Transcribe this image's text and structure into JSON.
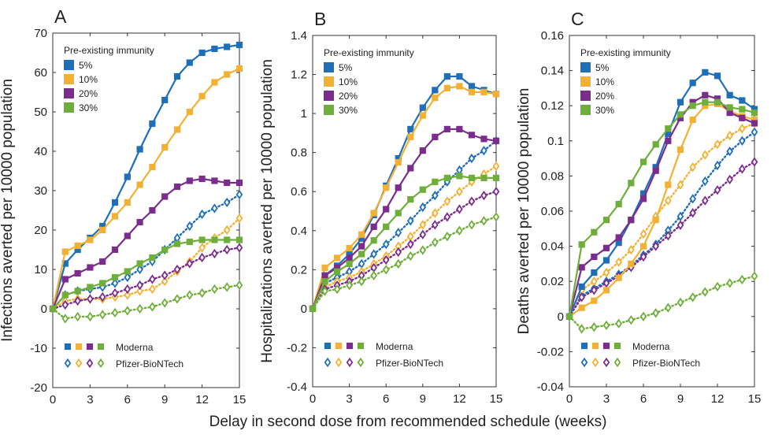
{
  "figure": {
    "xlabel": "Delay in second dose from recommended schedule (weeks)"
  },
  "legend": {
    "immunity_title": "Pre-existing immunity",
    "immunity_levels": [
      "5%",
      "10%",
      "20%",
      "30%"
    ],
    "vaccine_labels": [
      "Moderna",
      "Pfizer-BioNTech"
    ]
  },
  "colors": {
    "5%": "#1f6fb8",
    "10%": "#f2b134",
    "20%": "#7b2d8e",
    "30%": "#6fae3a"
  },
  "chart_data": [
    {
      "type": "line",
      "panel": "A",
      "ylabel": "Infections averted per 10000 population",
      "xlim": [
        0,
        15
      ],
      "ylim": [
        -20,
        70
      ],
      "xticks": [
        0,
        3,
        6,
        9,
        12,
        15
      ],
      "yticks": [
        -20,
        -10,
        0,
        10,
        20,
        30,
        40,
        50,
        60,
        70
      ],
      "x": [
        0,
        1,
        2,
        3,
        4,
        5,
        6,
        7,
        8,
        9,
        10,
        11,
        12,
        13,
        14,
        15
      ],
      "series": [
        {
          "name": "5%",
          "vaccine": "Moderna",
          "values": [
            0,
            11.5,
            15,
            18,
            21,
            27,
            33.5,
            40.5,
            47,
            53,
            59,
            62.5,
            65,
            66,
            66.5,
            67
          ]
        },
        {
          "name": "10%",
          "vaccine": "Moderna",
          "values": [
            0,
            14.5,
            16,
            17.5,
            20,
            23.5,
            27,
            31.5,
            36,
            41,
            45.5,
            50,
            54,
            57.5,
            59.5,
            61
          ]
        },
        {
          "name": "20%",
          "vaccine": "Moderna",
          "values": [
            0,
            7.5,
            9,
            10.5,
            12,
            15,
            18.5,
            22,
            25,
            28.5,
            31,
            32.5,
            33,
            32.5,
            32,
            32
          ]
        },
        {
          "name": "30%",
          "vaccine": "Moderna",
          "values": [
            0,
            3.5,
            4.5,
            5.5,
            6.5,
            8,
            9.5,
            11.5,
            13,
            15,
            16.5,
            17,
            17.5,
            17.5,
            17.5,
            17.5
          ]
        },
        {
          "name": "5%",
          "vaccine": "Pfizer-BioNTech",
          "values": [
            0,
            3.5,
            4.5,
            5,
            5.5,
            6.5,
            8,
            10,
            12,
            15,
            18,
            21,
            24,
            25.5,
            27,
            29
          ]
        },
        {
          "name": "10%",
          "vaccine": "Pfizer-BioNTech",
          "values": [
            0,
            2,
            2.5,
            2.5,
            2.5,
            3,
            3.5,
            4.5,
            5,
            7,
            9.5,
            12,
            15.5,
            18,
            20,
            23
          ]
        },
        {
          "name": "20%",
          "vaccine": "Pfizer-BioNTech",
          "values": [
            0,
            1,
            2,
            2.5,
            3,
            4,
            5,
            6,
            7.5,
            8.5,
            10,
            11.5,
            13,
            14,
            15,
            15.5
          ]
        },
        {
          "name": "30%",
          "vaccine": "Pfizer-BioNTech",
          "values": [
            0,
            -2.5,
            -2,
            -2,
            -1.5,
            -1,
            -0.5,
            0,
            0.5,
            1.5,
            2.5,
            3.5,
            4,
            5,
            5.5,
            6
          ]
        }
      ]
    },
    {
      "type": "line",
      "panel": "B",
      "ylabel": "Hospitalizations averted per 10000 population",
      "xlim": [
        0,
        15
      ],
      "ylim": [
        -0.4,
        1.4
      ],
      "xticks": [
        0,
        3,
        6,
        9,
        12,
        15
      ],
      "yticks": [
        -0.4,
        -0.2,
        0,
        0.2,
        0.4,
        0.6,
        0.8,
        1,
        1.2,
        1.4
      ],
      "x": [
        0,
        1,
        2,
        3,
        4,
        5,
        6,
        7,
        8,
        9,
        10,
        11,
        12,
        13,
        14,
        15
      ],
      "series": [
        {
          "name": "5%",
          "vaccine": "Moderna",
          "values": [
            0,
            0.17,
            0.22,
            0.28,
            0.36,
            0.48,
            0.63,
            0.77,
            0.92,
            1.03,
            1.12,
            1.19,
            1.19,
            1.14,
            1.12,
            1.1
          ]
        },
        {
          "name": "10%",
          "vaccine": "Moderna",
          "values": [
            0,
            0.21,
            0.26,
            0.31,
            0.38,
            0.49,
            0.62,
            0.75,
            0.88,
            0.99,
            1.08,
            1.13,
            1.14,
            1.11,
            1.11,
            1.1
          ]
        },
        {
          "name": "20%",
          "vaccine": "Moderna",
          "values": [
            0,
            0.17,
            0.21,
            0.26,
            0.32,
            0.42,
            0.51,
            0.62,
            0.72,
            0.81,
            0.88,
            0.92,
            0.92,
            0.89,
            0.87,
            0.86
          ]
        },
        {
          "name": "30%",
          "vaccine": "Moderna",
          "values": [
            0,
            0.14,
            0.19,
            0.23,
            0.28,
            0.35,
            0.42,
            0.49,
            0.56,
            0.61,
            0.65,
            0.67,
            0.68,
            0.67,
            0.67,
            0.67
          ]
        },
        {
          "name": "5%",
          "vaccine": "Pfizer-BioNTech",
          "values": [
            0,
            0.13,
            0.16,
            0.19,
            0.23,
            0.28,
            0.33,
            0.39,
            0.45,
            0.52,
            0.58,
            0.65,
            0.71,
            0.77,
            0.81,
            0.86
          ]
        },
        {
          "name": "10%",
          "vaccine": "Pfizer-BioNTech",
          "values": [
            0,
            0.11,
            0.14,
            0.16,
            0.19,
            0.23,
            0.27,
            0.32,
            0.37,
            0.43,
            0.49,
            0.55,
            0.6,
            0.65,
            0.69,
            0.73
          ]
        },
        {
          "name": "20%",
          "vaccine": "Pfizer-BioNTech",
          "values": [
            0,
            0.1,
            0.12,
            0.14,
            0.17,
            0.21,
            0.25,
            0.29,
            0.33,
            0.38,
            0.43,
            0.47,
            0.51,
            0.55,
            0.58,
            0.6
          ]
        },
        {
          "name": "30%",
          "vaccine": "Pfizer-BioNTech",
          "values": [
            0,
            0.09,
            0.1,
            0.12,
            0.14,
            0.17,
            0.2,
            0.23,
            0.27,
            0.3,
            0.34,
            0.37,
            0.4,
            0.43,
            0.45,
            0.47
          ]
        }
      ]
    },
    {
      "type": "line",
      "panel": "C",
      "ylabel": "Deaths averted per 10000 population",
      "xlim": [
        0,
        15
      ],
      "ylim": [
        -0.04,
        0.16
      ],
      "xticks": [
        0,
        3,
        6,
        9,
        12,
        15
      ],
      "yticks": [
        -0.04,
        -0.02,
        0,
        0.02,
        0.04,
        0.06,
        0.08,
        0.1,
        0.12,
        0.14,
        0.16
      ],
      "ytick_labels": [
        "-0.04",
        "-0.02",
        "0",
        "0.02",
        "0.04",
        "0.06",
        "0.08",
        "0.1",
        "0.12",
        "0.14",
        "0.16"
      ],
      "x": [
        0,
        1,
        2,
        3,
        4,
        5,
        6,
        7,
        8,
        9,
        10,
        11,
        12,
        13,
        14,
        15
      ],
      "series": [
        {
          "name": "5%",
          "vaccine": "Moderna",
          "values": [
            0,
            0.017,
            0.025,
            0.032,
            0.042,
            0.055,
            0.07,
            0.085,
            0.104,
            0.122,
            0.133,
            0.139,
            0.137,
            0.126,
            0.123,
            0.118
          ]
        },
        {
          "name": "10%",
          "vaccine": "Moderna",
          "values": [
            0,
            0.005,
            0.009,
            0.015,
            0.022,
            0.03,
            0.04,
            0.055,
            0.075,
            0.095,
            0.112,
            0.12,
            0.121,
            0.117,
            0.114,
            0.112
          ]
        },
        {
          "name": "20%",
          "vaccine": "Moderna",
          "values": [
            0,
            0.028,
            0.034,
            0.039,
            0.045,
            0.055,
            0.067,
            0.083,
            0.1,
            0.113,
            0.122,
            0.126,
            0.124,
            0.116,
            0.113,
            0.11
          ]
        },
        {
          "name": "30%",
          "vaccine": "Moderna",
          "values": [
            0,
            0.041,
            0.048,
            0.055,
            0.064,
            0.076,
            0.088,
            0.098,
            0.107,
            0.115,
            0.12,
            0.122,
            0.122,
            0.119,
            0.118,
            0.116
          ]
        },
        {
          "name": "5%",
          "vaccine": "Pfizer-BioNTech",
          "values": [
            0,
            0.012,
            0.016,
            0.02,
            0.024,
            0.029,
            0.035,
            0.041,
            0.049,
            0.057,
            0.067,
            0.077,
            0.086,
            0.094,
            0.1,
            0.105
          ]
        },
        {
          "name": "10%",
          "vaccine": "Pfizer-BioNTech",
          "values": [
            0,
            0.015,
            0.02,
            0.025,
            0.031,
            0.038,
            0.047,
            0.057,
            0.066,
            0.075,
            0.085,
            0.092,
            0.098,
            0.103,
            0.107,
            0.11
          ]
        },
        {
          "name": "20%",
          "vaccine": "Pfizer-BioNTech",
          "values": [
            0,
            0.011,
            0.015,
            0.019,
            0.023,
            0.028,
            0.034,
            0.04,
            0.046,
            0.052,
            0.059,
            0.066,
            0.072,
            0.078,
            0.084,
            0.088
          ]
        },
        {
          "name": "30%",
          "vaccine": "Pfizer-BioNTech",
          "values": [
            0,
            -0.007,
            -0.006,
            -0.005,
            -0.004,
            -0.002,
            0,
            0.002,
            0.005,
            0.008,
            0.011,
            0.014,
            0.017,
            0.019,
            0.021,
            0.023
          ]
        }
      ]
    }
  ]
}
